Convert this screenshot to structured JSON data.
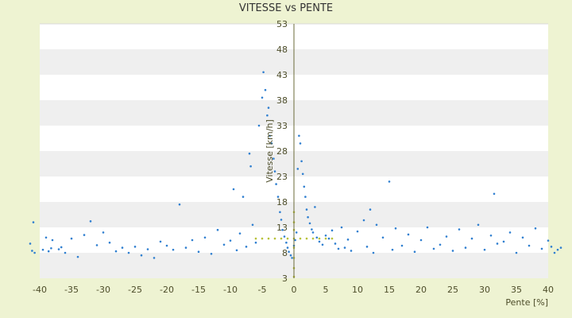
{
  "chart_data": {
    "type": "scatter",
    "title": "VITESSE vs PENTE",
    "xlabel": "Pente [%]",
    "ylabel": "Vitesse [km/h]",
    "xlim": [
      -40,
      40
    ],
    "ylim": [
      3,
      53
    ],
    "x_ticks": [
      -40,
      -35,
      -30,
      -25,
      -20,
      -15,
      -10,
      -5,
      0,
      5,
      10,
      15,
      20,
      25,
      30,
      35,
      40
    ],
    "y_ticks": [
      3,
      8,
      13,
      18,
      23,
      28,
      33,
      38,
      43,
      48,
      53
    ],
    "grid": "horizontal alternating bands",
    "legend": "none",
    "colors": {
      "points": "#2f7fd0",
      "highlight": "#b8c23a",
      "axis": "#6b6b3a",
      "band": "#efefef",
      "background": "#eef3d2"
    },
    "series": [
      {
        "points": [
          [
            -41.5,
            9.8
          ],
          [
            -41.2,
            8.4
          ],
          [
            -40.8,
            8.0
          ],
          [
            -39.5,
            8.6
          ],
          [
            -38.6,
            8.3
          ],
          [
            -38.2,
            8.9
          ],
          [
            -37.0,
            8.7
          ],
          [
            -36.6,
            9.1
          ],
          [
            -36.0,
            8.0
          ],
          [
            -41.0,
            14.0
          ],
          [
            -39.0,
            11.0
          ],
          [
            -38.0,
            10.5
          ],
          [
            -35.0,
            10.8
          ],
          [
            -34.0,
            7.2
          ],
          [
            -33.0,
            11.5
          ],
          [
            -32.0,
            14.2
          ],
          [
            -31.0,
            9.5
          ],
          [
            -30.0,
            12.0
          ],
          [
            -29.0,
            10.0
          ],
          [
            -28.0,
            8.3
          ],
          [
            -27.0,
            9.0
          ],
          [
            -26.0,
            8.0
          ],
          [
            -25.0,
            9.2
          ],
          [
            -24.0,
            7.5
          ],
          [
            -23.0,
            8.7
          ],
          [
            -22.0,
            7.0
          ],
          [
            -21.0,
            10.2
          ],
          [
            -20.0,
            9.4
          ],
          [
            -19.0,
            8.6
          ],
          [
            -18.0,
            17.5
          ],
          [
            -17.0,
            9.0
          ],
          [
            -16.0,
            10.5
          ],
          [
            -15.0,
            8.2
          ],
          [
            -14.0,
            11.0
          ],
          [
            -13.0,
            7.8
          ],
          [
            -12.0,
            12.5
          ],
          [
            -11.0,
            9.6
          ],
          [
            -10.0,
            10.4
          ],
          [
            -9.5,
            20.5
          ],
          [
            -9.0,
            8.5
          ],
          [
            -8.5,
            11.8
          ],
          [
            -8.0,
            19.0
          ],
          [
            -7.5,
            9.2
          ],
          [
            -7.0,
            27.5
          ],
          [
            -6.8,
            25.0
          ],
          [
            -6.5,
            13.5
          ],
          [
            -6.0,
            10.0
          ],
          [
            -5.5,
            33.0
          ],
          [
            -5.0,
            38.5
          ],
          [
            -4.8,
            43.5
          ],
          [
            -4.5,
            40.0
          ],
          [
            -4.2,
            35.0
          ],
          [
            -4.0,
            36.5
          ],
          [
            -3.8,
            31.0
          ],
          [
            -3.5,
            29.5
          ],
          [
            -3.2,
            26.5
          ],
          [
            -3.0,
            24.0
          ],
          [
            -2.8,
            21.5
          ],
          [
            -2.5,
            19.0
          ],
          [
            -2.2,
            16.0
          ],
          [
            -2.0,
            14.5
          ],
          [
            -1.8,
            12.5
          ],
          [
            -1.5,
            11.2
          ],
          [
            -1.2,
            10.0
          ],
          [
            -1.0,
            9.0
          ],
          [
            -0.8,
            8.2
          ],
          [
            -0.5,
            7.5
          ],
          [
            -0.3,
            7.0
          ],
          [
            0.0,
            9.4
          ],
          [
            0.2,
            10.5
          ],
          [
            0.4,
            12.0
          ],
          [
            0.6,
            24.5
          ],
          [
            0.8,
            31.0
          ],
          [
            1.0,
            29.5
          ],
          [
            1.2,
            26.0
          ],
          [
            1.4,
            23.5
          ],
          [
            1.6,
            21.0
          ],
          [
            1.8,
            19.0
          ],
          [
            2.0,
            16.5
          ],
          [
            2.2,
            15.0
          ],
          [
            2.5,
            13.8
          ],
          [
            2.8,
            12.6
          ],
          [
            3.0,
            12.0
          ],
          [
            3.3,
            17.0
          ],
          [
            3.6,
            11.0
          ],
          [
            4.0,
            10.2
          ],
          [
            4.5,
            9.6
          ],
          [
            5.0,
            11.4
          ],
          [
            5.5,
            10.8
          ],
          [
            6.0,
            12.4
          ],
          [
            6.5,
            9.8
          ],
          [
            7.0,
            8.8
          ],
          [
            7.5,
            13.0
          ],
          [
            8.0,
            9.0
          ],
          [
            8.5,
            10.6
          ],
          [
            9.0,
            8.4
          ],
          [
            10.0,
            12.2
          ],
          [
            11.0,
            14.4
          ],
          [
            11.5,
            9.2
          ],
          [
            12.0,
            16.5
          ],
          [
            12.5,
            8.0
          ],
          [
            13.0,
            13.5
          ],
          [
            14.0,
            11.0
          ],
          [
            15.0,
            22.0
          ],
          [
            15.5,
            8.6
          ],
          [
            16.0,
            12.8
          ],
          [
            17.0,
            9.4
          ],
          [
            18.0,
            11.6
          ],
          [
            19.0,
            8.2
          ],
          [
            20.0,
            10.5
          ],
          [
            21.0,
            13.0
          ],
          [
            22.0,
            8.8
          ],
          [
            23.0,
            9.6
          ],
          [
            24.0,
            11.2
          ],
          [
            25.0,
            8.4
          ],
          [
            26.0,
            12.6
          ],
          [
            27.0,
            9.0
          ],
          [
            28.0,
            10.8
          ],
          [
            29.0,
            13.5
          ],
          [
            30.0,
            8.6
          ],
          [
            31.0,
            11.4
          ],
          [
            31.5,
            19.6
          ],
          [
            32.0,
            9.8
          ],
          [
            33.0,
            10.2
          ],
          [
            34.0,
            12.0
          ],
          [
            35.0,
            8.0
          ],
          [
            36.0,
            11.0
          ],
          [
            37.0,
            9.4
          ],
          [
            38.0,
            12.8
          ],
          [
            39.0,
            8.8
          ],
          [
            40.0,
            10.4
          ],
          [
            40.5,
            9.2
          ],
          [
            41.0,
            8.0
          ],
          [
            41.5,
            8.6
          ],
          [
            42.0,
            9.0
          ]
        ]
      },
      {
        "points": [
          [
            -6.0,
            10.8
          ],
          [
            -5.0,
            10.8
          ],
          [
            -4.0,
            10.8
          ],
          [
            -3.0,
            10.8
          ],
          [
            -2.0,
            10.8
          ],
          [
            -1.0,
            10.8
          ],
          [
            0.0,
            10.8
          ],
          [
            1.0,
            10.8
          ],
          [
            2.0,
            10.8
          ],
          [
            3.0,
            10.8
          ],
          [
            4.0,
            10.8
          ],
          [
            5.0,
            10.8
          ],
          [
            6.0,
            10.8
          ],
          [
            0.0,
            16.0
          ],
          [
            0.0,
            14.0
          ],
          [
            0.0,
            12.5
          ],
          [
            0.0,
            9.0
          ],
          [
            0.0,
            7.0
          ],
          [
            0.0,
            5.0
          ],
          [
            0.0,
            3.3
          ]
        ]
      }
    ]
  }
}
